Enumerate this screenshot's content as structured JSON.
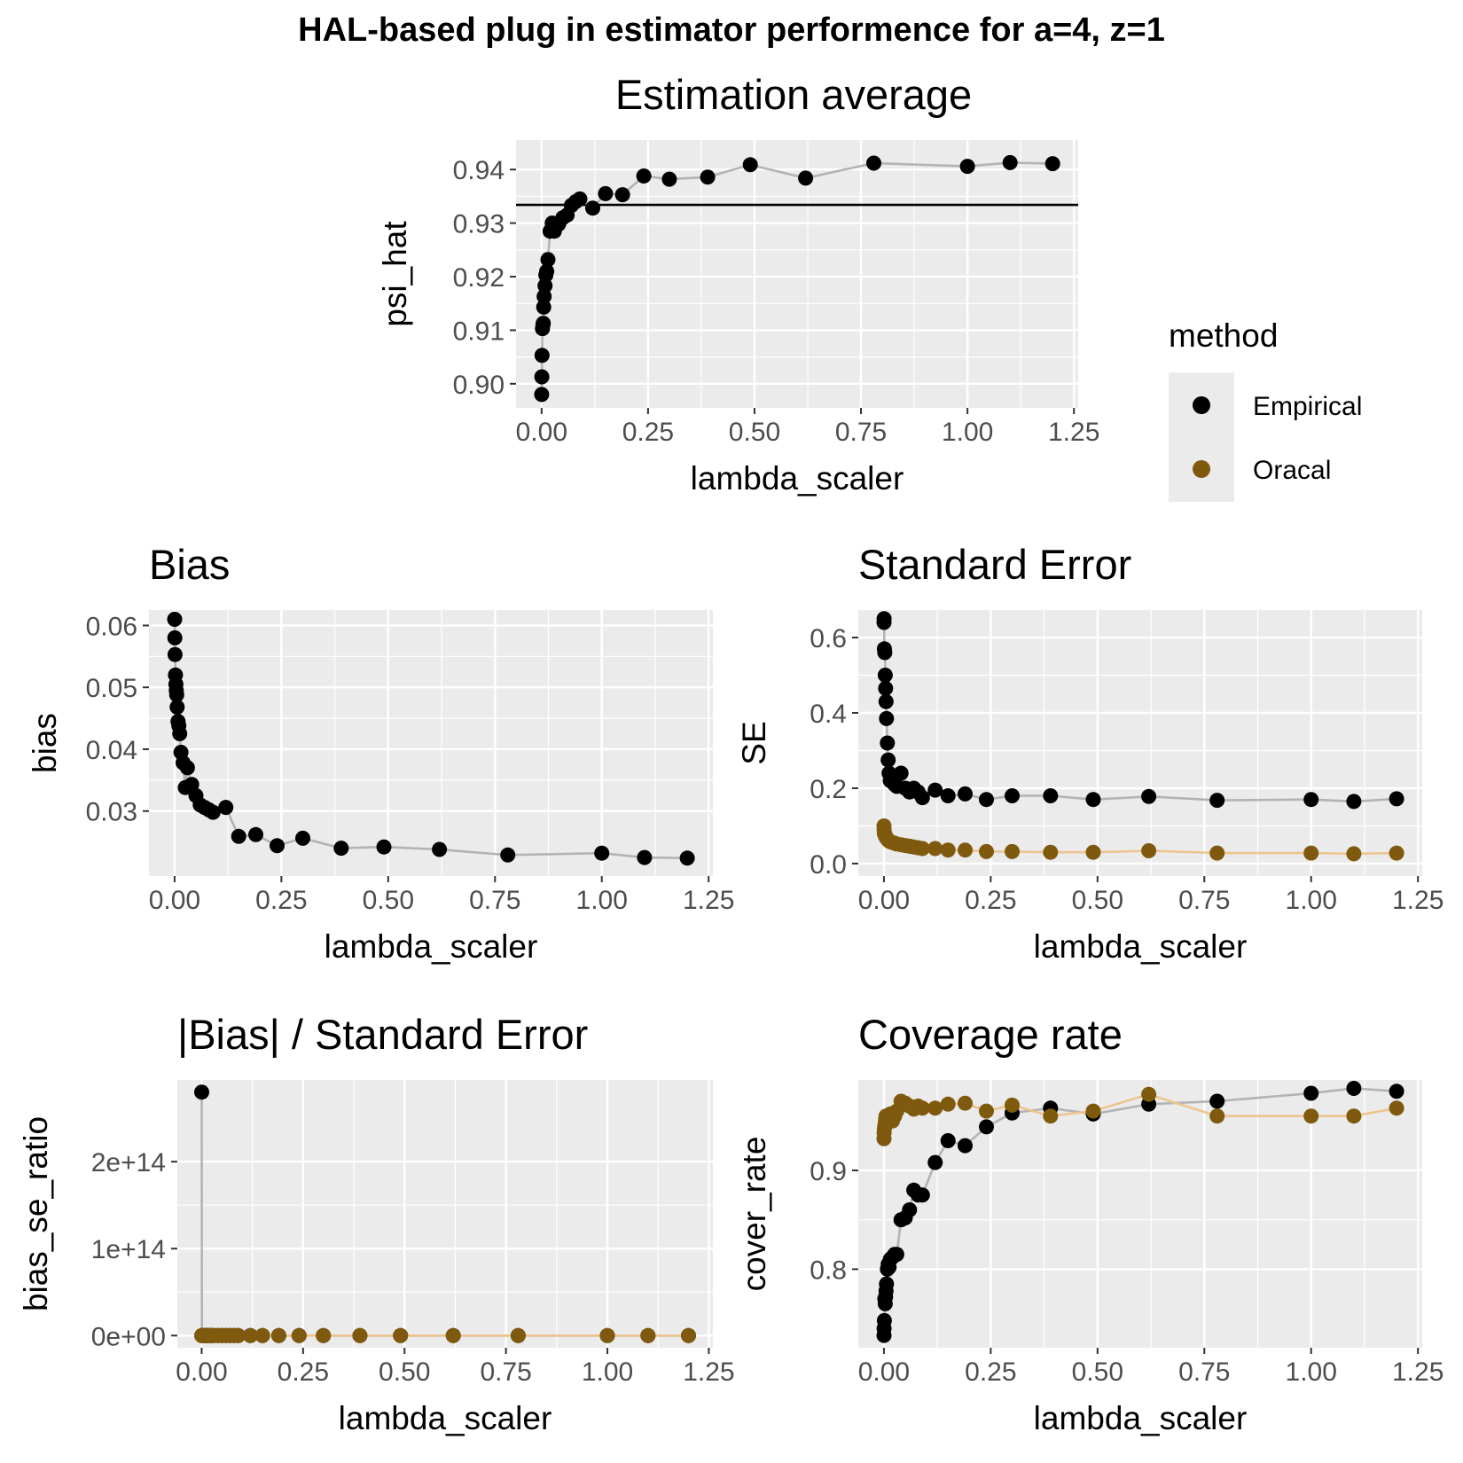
{
  "figure_title": "HAL-based plug in estimator performence for a=4, z=1",
  "legend": {
    "title": "method",
    "items": [
      {
        "label": "Empirical",
        "color": "#000000",
        "line_color": "#b3b3b3"
      },
      {
        "label": "Oracal",
        "color": "#7f5a0e",
        "line_color": "#edc48f"
      }
    ]
  },
  "chart_data": [
    {
      "type": "scatter",
      "title": "Estimation average",
      "xlabel": "lambda_scaler",
      "ylabel": "psi_hat",
      "xlim": [
        -0.06,
        1.26
      ],
      "ylim": [
        0.8955,
        0.9455
      ],
      "xticks": [
        0,
        0.25,
        0.5,
        0.75,
        1,
        1.25
      ],
      "xtick_labels": [
        "0.00",
        "0.25",
        "0.50",
        "0.75",
        "1.00",
        "1.25"
      ],
      "yticks": [
        0.9,
        0.91,
        0.92,
        0.93,
        0.94
      ],
      "ytick_labels": [
        "0.90",
        "0.91",
        "0.92",
        "0.93",
        "0.94"
      ],
      "hline": 0.9334,
      "series": [
        {
          "name": "Empirical",
          "x": [
            0.0002,
            0.0005,
            0.001,
            0.002,
            0.003,
            0.004,
            0.005,
            0.006,
            0.008,
            0.01,
            0.012,
            0.015,
            0.02,
            0.025,
            0.03,
            0.04,
            0.05,
            0.06,
            0.07,
            0.08,
            0.09,
            0.12,
            0.15,
            0.19,
            0.24,
            0.3,
            0.39,
            0.49,
            0.62,
            0.78,
            1.0,
            1.1,
            1.2
          ],
          "y": [
            0.898,
            0.9013,
            0.9053,
            0.9103,
            0.911,
            0.9113,
            0.9143,
            0.9163,
            0.9183,
            0.9203,
            0.921,
            0.9232,
            0.9285,
            0.93,
            0.9285,
            0.9298,
            0.931,
            0.9315,
            0.9333,
            0.934,
            0.9345,
            0.9328,
            0.9355,
            0.9353,
            0.9388,
            0.9382,
            0.9386,
            0.9409,
            0.9384,
            0.9412,
            0.9406,
            0.9413,
            0.9411
          ]
        }
      ]
    },
    {
      "type": "scatter",
      "title": "Bias",
      "xlabel": "lambda_scaler",
      "ylabel": "bias",
      "xlim": [
        -0.06,
        1.26
      ],
      "ylim": [
        0.0195,
        0.0625
      ],
      "xticks": [
        0,
        0.25,
        0.5,
        0.75,
        1,
        1.25
      ],
      "xtick_labels": [
        "0.00",
        "0.25",
        "0.50",
        "0.75",
        "1.00",
        "1.25"
      ],
      "yticks": [
        0.03,
        0.04,
        0.05,
        0.06
      ],
      "ytick_labels": [
        "0.03",
        "0.04",
        "0.05",
        "0.06"
      ],
      "series": [
        {
          "name": "Empirical",
          "x": [
            0.0002,
            0.0005,
            0.001,
            0.002,
            0.003,
            0.004,
            0.005,
            0.006,
            0.008,
            0.01,
            0.012,
            0.015,
            0.02,
            0.025,
            0.03,
            0.04,
            0.05,
            0.06,
            0.07,
            0.08,
            0.09,
            0.12,
            0.15,
            0.19,
            0.24,
            0.3,
            0.39,
            0.49,
            0.62,
            0.78,
            1.0,
            1.1,
            1.2
          ],
          "y": [
            0.061,
            0.058,
            0.0553,
            0.052,
            0.0505,
            0.0495,
            0.0488,
            0.0468,
            0.0445,
            0.0438,
            0.0425,
            0.0395,
            0.0378,
            0.0338,
            0.037,
            0.0343,
            0.0325,
            0.031,
            0.0306,
            0.0302,
            0.0298,
            0.0306,
            0.0259,
            0.0262,
            0.0244,
            0.0256,
            0.024,
            0.0242,
            0.0238,
            0.0229,
            0.0232,
            0.0225,
            0.0224
          ]
        }
      ]
    },
    {
      "type": "scatter",
      "title": "Standard Error",
      "xlabel": "lambda_scaler",
      "ylabel": "SE",
      "xlim": [
        -0.06,
        1.26
      ],
      "ylim": [
        -0.033,
        0.673
      ],
      "xticks": [
        0,
        0.25,
        0.5,
        0.75,
        1,
        1.25
      ],
      "xtick_labels": [
        "0.00",
        "0.25",
        "0.50",
        "0.75",
        "1.00",
        "1.25"
      ],
      "yticks": [
        0,
        0.2,
        0.4,
        0.6
      ],
      "ytick_labels": [
        "0.0",
        "0.2",
        "0.4",
        "0.6"
      ],
      "series": [
        {
          "name": "Empirical",
          "x": [
            0.0002,
            0.0005,
            0.001,
            0.002,
            0.003,
            0.004,
            0.005,
            0.006,
            0.008,
            0.01,
            0.012,
            0.015,
            0.02,
            0.025,
            0.03,
            0.04,
            0.05,
            0.06,
            0.07,
            0.08,
            0.09,
            0.12,
            0.15,
            0.19,
            0.24,
            0.3,
            0.39,
            0.49,
            0.62,
            0.78,
            1.0,
            1.1,
            1.2
          ],
          "y": [
            0.64,
            0.65,
            0.57,
            0.56,
            0.5,
            0.465,
            0.43,
            0.385,
            0.32,
            0.275,
            0.24,
            0.22,
            0.23,
            0.21,
            0.205,
            0.24,
            0.2,
            0.19,
            0.2,
            0.19,
            0.175,
            0.195,
            0.18,
            0.185,
            0.17,
            0.18,
            0.18,
            0.17,
            0.178,
            0.168,
            0.17,
            0.165,
            0.172
          ]
        },
        {
          "name": "Oracal",
          "x": [
            0.0002,
            0.0005,
            0.001,
            0.002,
            0.003,
            0.004,
            0.005,
            0.006,
            0.008,
            0.01,
            0.012,
            0.015,
            0.02,
            0.025,
            0.03,
            0.04,
            0.05,
            0.06,
            0.07,
            0.08,
            0.09,
            0.12,
            0.15,
            0.19,
            0.24,
            0.3,
            0.39,
            0.49,
            0.62,
            0.78,
            1.0,
            1.1,
            1.2
          ],
          "y": [
            0.1,
            0.09,
            0.08,
            0.078,
            0.075,
            0.072,
            0.07,
            0.068,
            0.065,
            0.062,
            0.06,
            0.058,
            0.056,
            0.054,
            0.052,
            0.05,
            0.048,
            0.046,
            0.044,
            0.042,
            0.04,
            0.04,
            0.036,
            0.036,
            0.032,
            0.032,
            0.03,
            0.03,
            0.034,
            0.028,
            0.028,
            0.026,
            0.028
          ]
        }
      ]
    },
    {
      "type": "scatter",
      "title": "|Bias| / Standard Error",
      "xlabel": "lambda_scaler",
      "ylabel": "bias_se_ratio",
      "xlim": [
        -0.06,
        1.26
      ],
      "ylim": [
        -14000000000000.0,
        294000000000000.0
      ],
      "xticks": [
        0,
        0.25,
        0.5,
        0.75,
        1,
        1.25
      ],
      "xtick_labels": [
        "0.00",
        "0.25",
        "0.50",
        "0.75",
        "1.00",
        "1.25"
      ],
      "yticks": [
        0,
        100000000000000.0,
        200000000000000.0
      ],
      "ytick_labels": [
        "0e+00",
        "1e+14",
        "2e+14"
      ],
      "series": [
        {
          "name": "Empirical",
          "x": [
            0.0002,
            0.0005,
            0.001,
            0.002,
            0.003,
            0.004,
            0.005,
            0.006,
            0.008,
            0.01,
            0.012,
            0.015,
            0.02,
            0.025,
            0.03,
            0.04,
            0.05,
            0.06,
            0.07,
            0.08,
            0.09,
            0.12,
            0.15,
            0.19,
            0.24,
            0.3,
            0.39,
            0.49,
            0.62,
            0.78,
            1.0,
            1.1,
            1.2
          ],
          "y": [
            280000000000000.0,
            0,
            0,
            0,
            0,
            0,
            0,
            0,
            0,
            0,
            0,
            0,
            0,
            0,
            0,
            0,
            0,
            0,
            0,
            0,
            0,
            0,
            0,
            0,
            0,
            0,
            0,
            0,
            0,
            0,
            0,
            0,
            0
          ]
        },
        {
          "name": "Oracal",
          "x": [
            0.0002,
            0.0005,
            0.001,
            0.002,
            0.003,
            0.004,
            0.005,
            0.006,
            0.008,
            0.01,
            0.012,
            0.015,
            0.02,
            0.025,
            0.03,
            0.04,
            0.05,
            0.06,
            0.07,
            0.08,
            0.09,
            0.12,
            0.15,
            0.19,
            0.24,
            0.3,
            0.39,
            0.49,
            0.62,
            0.78,
            1.0,
            1.1,
            1.2
          ],
          "y": [
            0,
            0,
            0,
            0,
            0,
            0,
            0,
            0,
            0,
            0,
            0,
            0,
            0,
            0,
            0,
            0,
            0,
            0,
            0,
            0,
            0,
            0,
            0,
            0,
            0,
            0,
            0,
            0,
            0,
            0,
            0,
            0,
            0
          ]
        }
      ]
    },
    {
      "type": "scatter",
      "title": "Coverage rate",
      "xlabel": "lambda_scaler",
      "ylabel": "cover_rate",
      "xlim": [
        -0.06,
        1.26
      ],
      "ylim": [
        0.7205,
        0.9915
      ],
      "xticks": [
        0,
        0.25,
        0.5,
        0.75,
        1,
        1.25
      ],
      "xtick_labels": [
        "0.00",
        "0.25",
        "0.50",
        "0.75",
        "1.00",
        "1.25"
      ],
      "yticks": [
        0.8,
        0.9
      ],
      "ytick_labels": [
        "0.8",
        "0.9"
      ],
      "series": [
        {
          "name": "Empirical",
          "x": [
            0.0002,
            0.0005,
            0.001,
            0.002,
            0.003,
            0.004,
            0.005,
            0.006,
            0.008,
            0.01,
            0.012,
            0.015,
            0.02,
            0.025,
            0.03,
            0.04,
            0.05,
            0.06,
            0.07,
            0.08,
            0.09,
            0.12,
            0.15,
            0.19,
            0.24,
            0.3,
            0.39,
            0.49,
            0.62,
            0.78,
            1.0,
            1.1,
            1.2
          ],
          "y": [
            0.733,
            0.74,
            0.748,
            0.77,
            0.765,
            0.772,
            0.778,
            0.785,
            0.8,
            0.805,
            0.802,
            0.81,
            0.812,
            0.815,
            0.815,
            0.85,
            0.852,
            0.86,
            0.88,
            0.875,
            0.875,
            0.908,
            0.93,
            0.925,
            0.944,
            0.958,
            0.963,
            0.957,
            0.967,
            0.97,
            0.978,
            0.983,
            0.98
          ]
        },
        {
          "name": "Oracal",
          "x": [
            0.0002,
            0.0005,
            0.001,
            0.002,
            0.003,
            0.004,
            0.005,
            0.006,
            0.008,
            0.01,
            0.012,
            0.015,
            0.02,
            0.025,
            0.03,
            0.04,
            0.05,
            0.06,
            0.07,
            0.08,
            0.09,
            0.12,
            0.15,
            0.19,
            0.24,
            0.3,
            0.39,
            0.49,
            0.62,
            0.78,
            1.0,
            1.1,
            1.2
          ],
          "y": [
            0.932,
            0.938,
            0.942,
            0.945,
            0.948,
            0.952,
            0.955,
            0.95,
            0.953,
            0.955,
            0.955,
            0.957,
            0.95,
            0.955,
            0.96,
            0.97,
            0.968,
            0.965,
            0.962,
            0.965,
            0.963,
            0.963,
            0.967,
            0.968,
            0.96,
            0.966,
            0.955,
            0.96,
            0.977,
            0.955,
            0.955,
            0.955,
            0.963
          ]
        }
      ]
    }
  ]
}
